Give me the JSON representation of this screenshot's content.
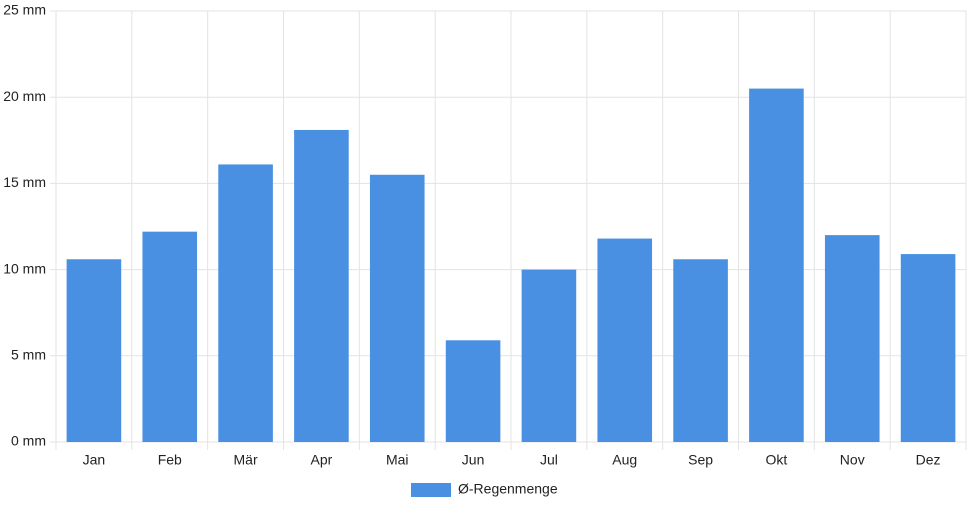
{
  "chart_data": {
    "type": "bar",
    "categories": [
      "Jan",
      "Feb",
      "Mär",
      "Apr",
      "Mai",
      "Jun",
      "Jul",
      "Aug",
      "Sep",
      "Okt",
      "Nov",
      "Dez"
    ],
    "series": [
      {
        "name": "Ø-Regenmenge",
        "color": "#4a90e2",
        "values": [
          10.6,
          12.2,
          16.1,
          18.1,
          15.5,
          5.9,
          10.0,
          11.8,
          10.6,
          20.5,
          12.0,
          10.9
        ]
      }
    ],
    "ylim": [
      0,
      25
    ],
    "yticks": [
      {
        "value": 0,
        "label": "0 mm"
      },
      {
        "value": 5,
        "label": "5 mm"
      },
      {
        "value": 10,
        "label": "10 mm"
      },
      {
        "value": 15,
        "label": "15 mm"
      },
      {
        "value": 20,
        "label": "20 mm"
      },
      {
        "value": 25,
        "label": "25 mm"
      }
    ],
    "grid": true,
    "legend": "bottom"
  }
}
